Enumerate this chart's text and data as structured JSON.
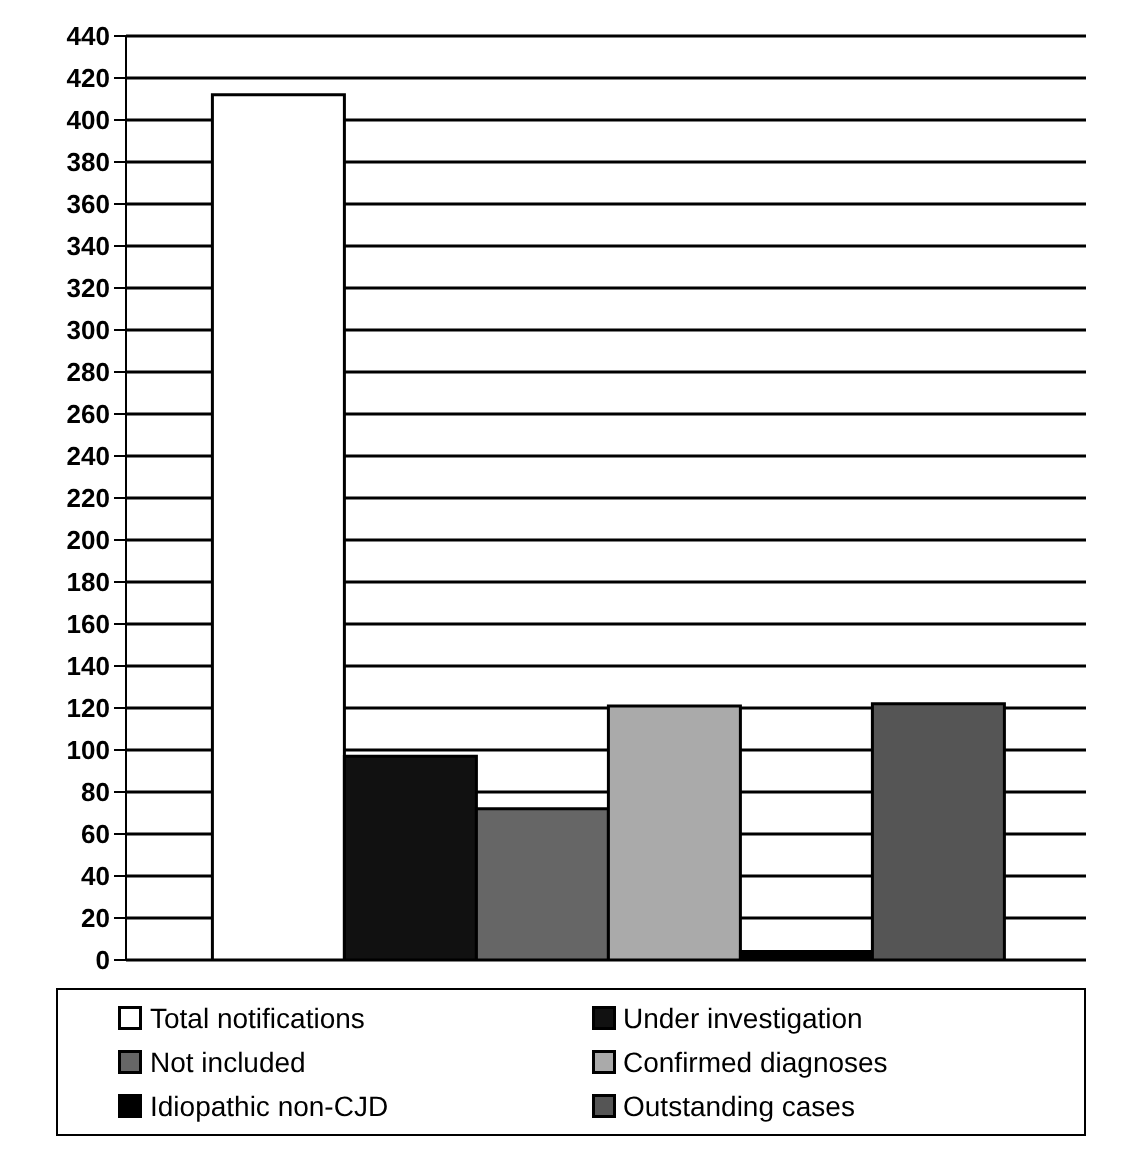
{
  "chart_data": {
    "type": "bar",
    "categories": [
      null
    ],
    "series": [
      {
        "name": "Total notifications",
        "color": "#ffffff",
        "values": [
          412
        ]
      },
      {
        "name": "Under investigation",
        "color": "#111111",
        "values": [
          97
        ]
      },
      {
        "name": "Not included",
        "color": "#666666",
        "values": [
          72
        ]
      },
      {
        "name": "Confirmed diagnoses",
        "color": "#aaaaaa",
        "values": [
          121
        ]
      },
      {
        "name": "Idiopathic non-CJD",
        "color": "#000000",
        "values": [
          4
        ]
      },
      {
        "name": "Outstanding cases",
        "color": "#555555",
        "values": [
          122
        ]
      }
    ],
    "ylim": [
      0,
      440
    ],
    "yticks": [
      0,
      20,
      40,
      60,
      80,
      100,
      120,
      140,
      160,
      180,
      200,
      220,
      240,
      260,
      280,
      300,
      320,
      340,
      360,
      380,
      400,
      420,
      440
    ],
    "grid": "y",
    "legend": "bottom"
  }
}
